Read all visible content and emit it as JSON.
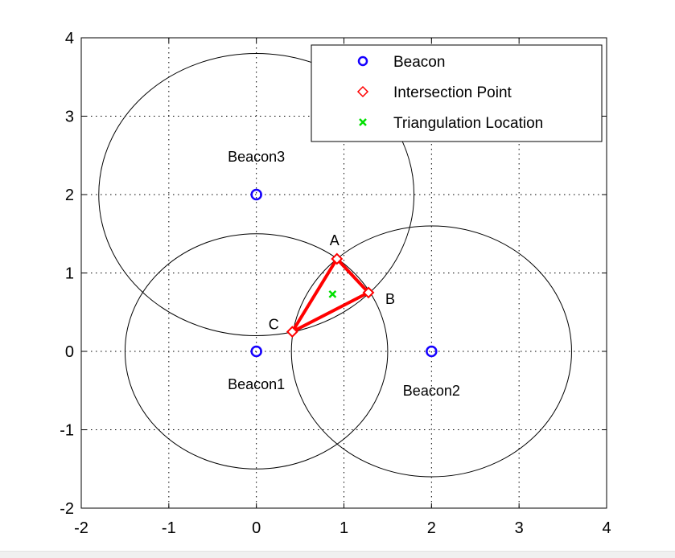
{
  "chart_data": {
    "type": "scatter",
    "title": "",
    "xlabel": "",
    "ylabel": "",
    "xlim": [
      -2,
      4
    ],
    "ylim": [
      -2,
      4
    ],
    "xticks": [
      -2,
      -1,
      0,
      1,
      2,
      3,
      4
    ],
    "yticks": [
      -2,
      -1,
      0,
      1,
      2,
      3,
      4
    ],
    "grid": true,
    "legend_position": "top-right",
    "colors": {
      "beacon": "#1500ff",
      "intersection": "#ff0000",
      "triangle": "#ff0000",
      "triangulation": "#00e000",
      "circle": "#000000",
      "grid": "#000000"
    },
    "legend": [
      {
        "label": "Beacon",
        "marker": "circle",
        "color": "#1500ff"
      },
      {
        "label": "Intersection Point",
        "marker": "diamond",
        "color": "#ff0000"
      },
      {
        "label": "Triangulation Location",
        "marker": "x",
        "color": "#00e000"
      }
    ],
    "beacons": [
      {
        "name": "Beacon1",
        "x": 0,
        "y": 0,
        "range": 1.5
      },
      {
        "name": "Beacon2",
        "x": 2,
        "y": 0,
        "range": 1.6
      },
      {
        "name": "Beacon3",
        "x": 0,
        "y": 2,
        "range": 1.8
      }
    ],
    "intersection_points": [
      {
        "label": "A",
        "x": 0.92,
        "y": 1.18
      },
      {
        "label": "B",
        "x": 1.28,
        "y": 0.75
      },
      {
        "label": "C",
        "x": 0.41,
        "y": 0.25
      }
    ],
    "triangulation_location": {
      "x": 0.87,
      "y": 0.73
    }
  }
}
